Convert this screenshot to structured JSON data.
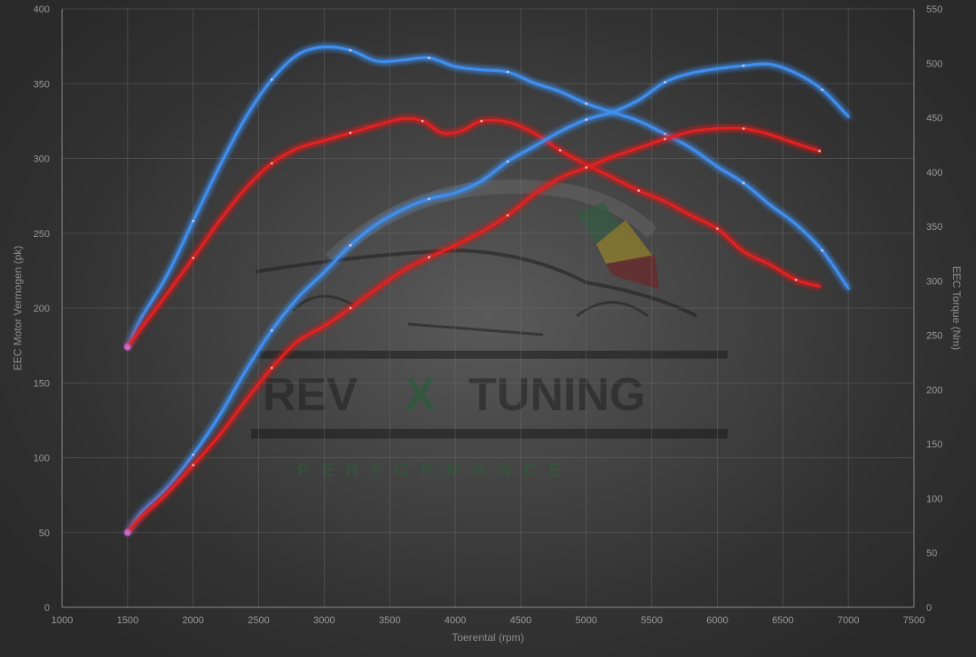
{
  "watermark": {
    "brand_left": "REV",
    "brand_x": "X",
    "brand_right": "TUNING",
    "tagline": "PERFORMANCE"
  },
  "colors": {
    "blue": "#3f8ff0",
    "red": "#e02020",
    "grid": "#6e6e6e",
    "text": "#9a9a9a"
  },
  "chart_data": {
    "type": "line",
    "xlabel": "Toerental (rpm)",
    "ylabel_left": "EEC Motor Vermogen (pk)",
    "ylabel_right": "EEC Torque (Nm)",
    "xlim": [
      1000,
      7500
    ],
    "ylim_left": [
      0,
      400
    ],
    "ylim_right": [
      0,
      550
    ],
    "x_ticks": [
      1000,
      1500,
      2000,
      2500,
      3000,
      3500,
      4000,
      4500,
      5000,
      5500,
      6000,
      6500,
      7000,
      7500
    ],
    "y_ticks_left": [
      0,
      50,
      100,
      150,
      200,
      250,
      300,
      350,
      400
    ],
    "y_ticks_right": [
      0,
      50,
      100,
      150,
      200,
      250,
      300,
      350,
      400,
      450,
      500,
      550
    ],
    "grid": true,
    "series": [
      {
        "axis": "right",
        "color": "#3f8ff0",
        "points": [
          [
            1500,
            240
          ],
          [
            1600,
            265
          ],
          [
            1800,
            305
          ],
          [
            2000,
            355
          ],
          [
            2200,
            405
          ],
          [
            2400,
            450
          ],
          [
            2600,
            485
          ],
          [
            2800,
            508
          ],
          [
            3000,
            515
          ],
          [
            3200,
            512
          ],
          [
            3400,
            502
          ],
          [
            3600,
            503
          ],
          [
            3800,
            505
          ],
          [
            4000,
            497
          ],
          [
            4200,
            494
          ],
          [
            4400,
            492
          ],
          [
            4600,
            482
          ],
          [
            4800,
            474
          ],
          [
            5000,
            463
          ],
          [
            5200,
            455
          ],
          [
            5400,
            447
          ],
          [
            5600,
            435
          ],
          [
            5800,
            422
          ],
          [
            6000,
            405
          ],
          [
            6200,
            390
          ],
          [
            6400,
            370
          ],
          [
            6600,
            352
          ],
          [
            6800,
            328
          ],
          [
            7000,
            293
          ]
        ]
      },
      {
        "axis": "right",
        "color": "#e02020",
        "points": [
          [
            1500,
            239
          ],
          [
            1600,
            256
          ],
          [
            1800,
            288
          ],
          [
            2000,
            321
          ],
          [
            2200,
            355
          ],
          [
            2400,
            385
          ],
          [
            2600,
            408
          ],
          [
            2800,
            422
          ],
          [
            3000,
            429
          ],
          [
            3200,
            436
          ],
          [
            3400,
            443
          ],
          [
            3600,
            449
          ],
          [
            3750,
            447
          ],
          [
            3900,
            436
          ],
          [
            4050,
            438
          ],
          [
            4200,
            447
          ],
          [
            4400,
            446
          ],
          [
            4600,
            436
          ],
          [
            4800,
            420
          ],
          [
            5000,
            407
          ],
          [
            5200,
            395
          ],
          [
            5400,
            383
          ],
          [
            5600,
            373
          ],
          [
            5800,
            360
          ],
          [
            6000,
            348
          ],
          [
            6200,
            327
          ],
          [
            6400,
            315
          ],
          [
            6600,
            301
          ],
          [
            6780,
            295
          ]
        ]
      },
      {
        "axis": "left",
        "color": "#3f8ff0",
        "points": [
          [
            1500,
            50
          ],
          [
            1600,
            63
          ],
          [
            1800,
            80
          ],
          [
            2000,
            102
          ],
          [
            2200,
            128
          ],
          [
            2400,
            158
          ],
          [
            2600,
            185
          ],
          [
            2800,
            207
          ],
          [
            3000,
            224
          ],
          [
            3200,
            242
          ],
          [
            3400,
            256
          ],
          [
            3600,
            266
          ],
          [
            3800,
            273
          ],
          [
            4000,
            277
          ],
          [
            4200,
            285
          ],
          [
            4400,
            298
          ],
          [
            4600,
            308
          ],
          [
            4800,
            318
          ],
          [
            5000,
            326
          ],
          [
            5200,
            331
          ],
          [
            5400,
            339
          ],
          [
            5600,
            351
          ],
          [
            5800,
            357
          ],
          [
            6000,
            360
          ],
          [
            6200,
            362
          ],
          [
            6400,
            363
          ],
          [
            6600,
            357
          ],
          [
            6800,
            346
          ],
          [
            7000,
            328
          ]
        ]
      },
      {
        "axis": "left",
        "color": "#e02020",
        "points": [
          [
            1500,
            50
          ],
          [
            1600,
            60
          ],
          [
            1800,
            76
          ],
          [
            2000,
            95
          ],
          [
            2200,
            115
          ],
          [
            2400,
            138
          ],
          [
            2600,
            160
          ],
          [
            2800,
            178
          ],
          [
            3000,
            188
          ],
          [
            3200,
            200
          ],
          [
            3400,
            213
          ],
          [
            3600,
            225
          ],
          [
            3800,
            234
          ],
          [
            4000,
            242
          ],
          [
            4200,
            251
          ],
          [
            4400,
            262
          ],
          [
            4600,
            276
          ],
          [
            4800,
            287
          ],
          [
            5000,
            294
          ],
          [
            5200,
            301
          ],
          [
            5400,
            307
          ],
          [
            5600,
            313
          ],
          [
            5800,
            318
          ],
          [
            6000,
            320
          ],
          [
            6200,
            320
          ],
          [
            6400,
            316
          ],
          [
            6600,
            310
          ],
          [
            6780,
            305
          ]
        ]
      }
    ]
  }
}
